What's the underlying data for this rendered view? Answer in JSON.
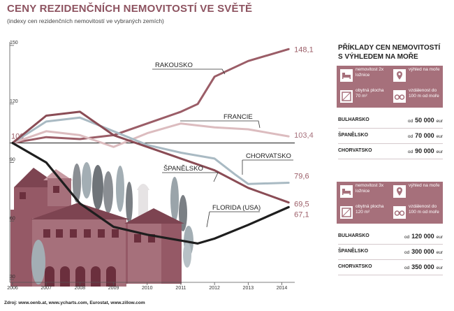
{
  "title": "CENY REZIDENČNÍCH NEMOVITOSTÍ VE SVĚTĚ",
  "subtitle": "(indexy cen rezidenčních nemovitostí ve vybraných zemích)",
  "source": "Zdroj: www.oenb.at, www.ycharts.com, Eurostat, www.zillow.com",
  "colors": {
    "brand": "#8d5360",
    "box": "#a6707b",
    "baseline": "#333333"
  },
  "chart_data": {
    "type": "line",
    "ylim": [
      30,
      150
    ],
    "yticks": [
      "150",
      "120",
      "90",
      "60",
      "30"
    ],
    "xlim": [
      2006,
      2014.3
    ],
    "xticks": [
      "2006",
      "2007",
      "2008",
      "2009",
      "2010",
      "2011",
      "2012",
      "2013",
      "2014"
    ],
    "baseline": {
      "value": 100,
      "label": "100"
    },
    "series": [
      {
        "name": "RAKOUSKO",
        "color": "#9b5d67",
        "end_label": "148,1",
        "points": [
          [
            2006,
            100
          ],
          [
            2007,
            103
          ],
          [
            2008,
            102
          ],
          [
            2009,
            104
          ],
          [
            2010,
            110
          ],
          [
            2011,
            116
          ],
          [
            2011.5,
            120
          ],
          [
            2012,
            134
          ],
          [
            2013,
            142
          ],
          [
            2014.2,
            148.1
          ]
        ]
      },
      {
        "name": "FRANCIE",
        "color": "#dcbcbf",
        "end_label": "103,4",
        "points": [
          [
            2006,
            100
          ],
          [
            2007,
            106
          ],
          [
            2008,
            104
          ],
          [
            2009,
            98
          ],
          [
            2010,
            105
          ],
          [
            2011,
            110
          ],
          [
            2012,
            108
          ],
          [
            2013,
            107
          ],
          [
            2014.2,
            103.4
          ]
        ]
      },
      {
        "name": "CHORVATSKO",
        "color": "#a9bac3",
        "end_label": "79,6",
        "points": [
          [
            2006,
            100
          ],
          [
            2007,
            111
          ],
          [
            2008,
            113
          ],
          [
            2009,
            106
          ],
          [
            2010,
            99
          ],
          [
            2011,
            95
          ],
          [
            2012,
            92
          ],
          [
            2012.6,
            84
          ],
          [
            2013,
            79
          ],
          [
            2014.2,
            79.6
          ]
        ]
      },
      {
        "name": "ŠPANĚLSKO",
        "color": "#8a4c55",
        "end_label": "69,5",
        "points": [
          [
            2006,
            100
          ],
          [
            2007,
            114
          ],
          [
            2008,
            116
          ],
          [
            2009,
            104
          ],
          [
            2010,
            98
          ],
          [
            2011,
            92
          ],
          [
            2012,
            86
          ],
          [
            2013,
            77
          ],
          [
            2014.2,
            69.5
          ]
        ]
      },
      {
        "name": "FLORIDA (USA)",
        "color": "#1e1e1e",
        "end_label": "67,1",
        "points": [
          [
            2006,
            100
          ],
          [
            2007,
            90
          ],
          [
            2008,
            69
          ],
          [
            2009,
            57
          ],
          [
            2010,
            53
          ],
          [
            2011,
            50
          ],
          [
            2011.5,
            48.5
          ],
          [
            2012,
            51
          ],
          [
            2013,
            58
          ],
          [
            2014.2,
            67.1
          ]
        ]
      }
    ]
  },
  "panel": {
    "title": "PŘÍKLADY CEN NEMOVITOSTÍ S VÝHLEDEM NA MOŘE",
    "groups": [
      {
        "features": [
          {
            "icon": "bed-icon",
            "label": "nemovitost 2x ložnice"
          },
          {
            "icon": "view-icon",
            "label": "výhled na moře"
          },
          {
            "icon": "area-icon",
            "label": "obytná plocha 70 m²"
          },
          {
            "icon": "binoculars-icon",
            "label": "vzdálenost do 100 m od moře"
          }
        ],
        "rows": [
          {
            "country": "BULHARSKO",
            "prefix": "od",
            "price": "50 000",
            "currency": "eur"
          },
          {
            "country": "ŠPANĚLSKO",
            "prefix": "od",
            "price": "70 000",
            "currency": "eur"
          },
          {
            "country": "CHORVATSKO",
            "prefix": "od",
            "price": "90 000",
            "currency": "eur"
          }
        ]
      },
      {
        "features": [
          {
            "icon": "bed-icon",
            "label": "nemovitost 3x ložnice"
          },
          {
            "icon": "view-icon",
            "label": "výhled na moře"
          },
          {
            "icon": "area-icon",
            "label": "obytná plocha 120 m²"
          },
          {
            "icon": "binoculars-icon",
            "label": "vzdálenost do 100 m od moře"
          }
        ],
        "rows": [
          {
            "country": "BULHARSKO",
            "prefix": "od",
            "price": "120 000",
            "currency": "eur"
          },
          {
            "country": "ŠPANĚLSKO",
            "prefix": "od",
            "price": "300 000",
            "currency": "eur"
          },
          {
            "country": "CHORVATSKO",
            "prefix": "od",
            "price": "350 000",
            "currency": "eur"
          }
        ]
      }
    ]
  }
}
